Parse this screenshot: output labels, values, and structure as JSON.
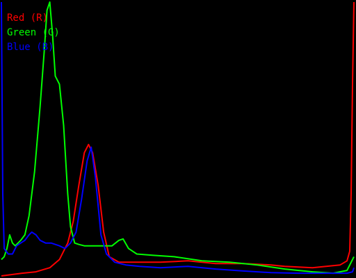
{
  "chart_data": {
    "type": "line",
    "x_range": [
      0,
      255
    ],
    "y_range": [
      0,
      1
    ],
    "grid": false,
    "background": "#000000",
    "legend": {
      "placement": "top-left",
      "entries": [
        {
          "label": "Red (R)",
          "color": "#ff0000"
        },
        {
          "label": "Green (G)",
          "color": "#00ff00"
        },
        {
          "label": "Blue (B)",
          "color": "#0000ff"
        }
      ]
    },
    "series": [
      {
        "color": "#ff0000",
        "points": [
          [
            0,
            0
          ],
          [
            15,
            0.01
          ],
          [
            25,
            0.015
          ],
          [
            35,
            0.03
          ],
          [
            42,
            0.06
          ],
          [
            48,
            0.12
          ],
          [
            52,
            0.2
          ],
          [
            56,
            0.33
          ],
          [
            60,
            0.45
          ],
          [
            63,
            0.48
          ],
          [
            66,
            0.45
          ],
          [
            70,
            0.33
          ],
          [
            74,
            0.16
          ],
          [
            78,
            0.07
          ],
          [
            85,
            0.05
          ],
          [
            100,
            0.05
          ],
          [
            115,
            0.05
          ],
          [
            135,
            0.055
          ],
          [
            155,
            0.045
          ],
          [
            175,
            0.045
          ],
          [
            195,
            0.04
          ],
          [
            205,
            0.035
          ],
          [
            225,
            0.03
          ],
          [
            245,
            0.04
          ],
          [
            250,
            0.055
          ],
          [
            252,
            0.09
          ],
          [
            253,
            0.3
          ],
          [
            254,
            0.7
          ],
          [
            255,
            1.0
          ]
        ]
      },
      {
        "color": "#00ff00",
        "points": [
          [
            0,
            0.06
          ],
          [
            2,
            0.07
          ],
          [
            4,
            0.1
          ],
          [
            6,
            0.15
          ],
          [
            8,
            0.12
          ],
          [
            10,
            0.11
          ],
          [
            14,
            0.13
          ],
          [
            17,
            0.15
          ],
          [
            20,
            0.22
          ],
          [
            24,
            0.38
          ],
          [
            28,
            0.62
          ],
          [
            31,
            0.82
          ],
          [
            33,
            0.97
          ],
          [
            35,
            1.0
          ],
          [
            37,
            0.88
          ],
          [
            39,
            0.73
          ],
          [
            42,
            0.7
          ],
          [
            45,
            0.55
          ],
          [
            48,
            0.3
          ],
          [
            50,
            0.18
          ],
          [
            53,
            0.12
          ],
          [
            56,
            0.115
          ],
          [
            60,
            0.11
          ],
          [
            65,
            0.11
          ],
          [
            70,
            0.11
          ],
          [
            75,
            0.11
          ],
          [
            80,
            0.11
          ],
          [
            85,
            0.13
          ],
          [
            88,
            0.135
          ],
          [
            92,
            0.1
          ],
          [
            98,
            0.08
          ],
          [
            110,
            0.075
          ],
          [
            125,
            0.07
          ],
          [
            145,
            0.055
          ],
          [
            165,
            0.05
          ],
          [
            185,
            0.04
          ],
          [
            205,
            0.025
          ],
          [
            225,
            0.015
          ],
          [
            240,
            0.01
          ],
          [
            250,
            0.02
          ],
          [
            254,
            0.06
          ],
          [
            255,
            0.07
          ]
        ]
      },
      {
        "color": "#0000ff",
        "points": [
          [
            0,
            1.0
          ],
          [
            1,
            0.3
          ],
          [
            2,
            0.1
          ],
          [
            5,
            0.08
          ],
          [
            8,
            0.08
          ],
          [
            11,
            0.11
          ],
          [
            14,
            0.12
          ],
          [
            17,
            0.13
          ],
          [
            20,
            0.15
          ],
          [
            22,
            0.16
          ],
          [
            25,
            0.15
          ],
          [
            28,
            0.13
          ],
          [
            32,
            0.12
          ],
          [
            36,
            0.12
          ],
          [
            42,
            0.11
          ],
          [
            46,
            0.1
          ],
          [
            50,
            0.12
          ],
          [
            54,
            0.16
          ],
          [
            58,
            0.28
          ],
          [
            62,
            0.42
          ],
          [
            65,
            0.47
          ],
          [
            68,
            0.36
          ],
          [
            72,
            0.15
          ],
          [
            76,
            0.08
          ],
          [
            82,
            0.05
          ],
          [
            90,
            0.04
          ],
          [
            100,
            0.035
          ],
          [
            115,
            0.03
          ],
          [
            135,
            0.035
          ],
          [
            155,
            0.025
          ],
          [
            175,
            0.018
          ],
          [
            195,
            0.012
          ],
          [
            215,
            0.01
          ],
          [
            235,
            0.01
          ],
          [
            250,
            0.01
          ],
          [
            254,
            0.015
          ],
          [
            255,
            0.03
          ]
        ]
      }
    ]
  }
}
